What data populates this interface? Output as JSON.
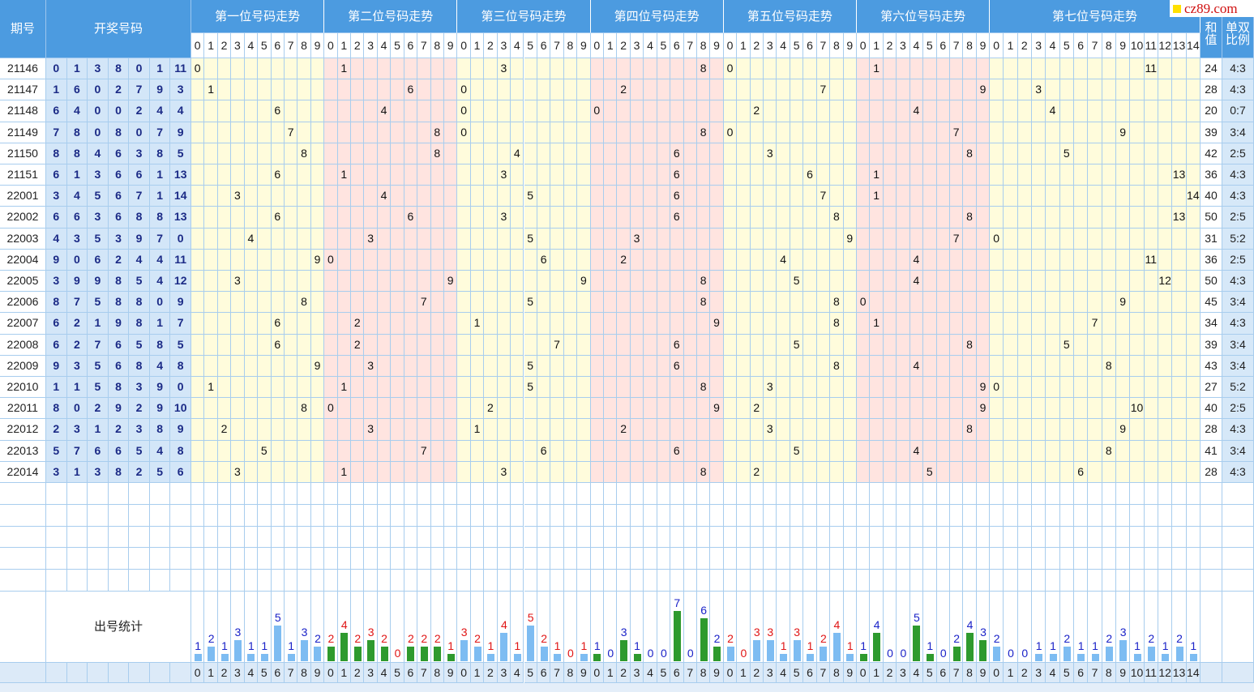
{
  "logo": "cz89.com",
  "header": {
    "period": "期号",
    "draw": "开奖号码",
    "sum": "和值",
    "ratio": "单双比例"
  },
  "stats_label": "出号统计",
  "sections": [
    {
      "title": "第一位号码走势",
      "columns": [
        0,
        1,
        2,
        3,
        4,
        5,
        6,
        7,
        8,
        9
      ],
      "counts": [
        1,
        2,
        1,
        3,
        1,
        1,
        5,
        1,
        3,
        2
      ],
      "bg": "#fffcdc",
      "label_color": "#1a22c8",
      "bar_color": "#7dbcf2"
    },
    {
      "title": "第二位号码走势",
      "columns": [
        0,
        1,
        2,
        3,
        4,
        5,
        6,
        7,
        8,
        9
      ],
      "counts": [
        2,
        4,
        2,
        3,
        2,
        0,
        2,
        2,
        2,
        1
      ],
      "bg": "#ffe4e0",
      "label_color": "#e01515",
      "bar_color": "#2e9a2e"
    },
    {
      "title": "第三位号码走势",
      "columns": [
        0,
        1,
        2,
        3,
        4,
        5,
        6,
        7,
        8,
        9
      ],
      "counts": [
        3,
        2,
        1,
        4,
        1,
        5,
        2,
        1,
        0,
        1
      ],
      "bg": "#fffcdc",
      "label_color": "#e01515",
      "bar_color": "#7dbcf2"
    },
    {
      "title": "第四位号码走势",
      "columns": [
        0,
        1,
        2,
        3,
        4,
        5,
        6,
        7,
        8,
        9
      ],
      "counts": [
        1,
        0,
        3,
        1,
        0,
        0,
        7,
        0,
        6,
        2
      ],
      "bg": "#ffe4e0",
      "label_color": "#1a22c8",
      "bar_color": "#2e9a2e"
    },
    {
      "title": "第五位号码走势",
      "columns": [
        0,
        1,
        2,
        3,
        4,
        5,
        6,
        7,
        8,
        9
      ],
      "counts": [
        2,
        0,
        3,
        3,
        1,
        3,
        1,
        2,
        4,
        1
      ],
      "bg": "#fffcdc",
      "label_color": "#e01515",
      "bar_color": "#7dbcf2"
    },
    {
      "title": "第六位号码走势",
      "columns": [
        0,
        1,
        2,
        3,
        4,
        5,
        6,
        7,
        8,
        9
      ],
      "counts": [
        1,
        4,
        0,
        0,
        5,
        1,
        0,
        2,
        4,
        3
      ],
      "bg": "#ffe4e0",
      "label_color": "#1a22c8",
      "bar_color": "#2e9a2e"
    },
    {
      "title": "第七位号码走势",
      "columns": [
        0,
        1,
        2,
        3,
        4,
        5,
        6,
        7,
        8,
        9,
        10,
        11,
        12,
        13,
        14
      ],
      "counts": [
        2,
        0,
        0,
        1,
        1,
        2,
        1,
        1,
        2,
        3,
        1,
        2,
        1,
        2,
        1
      ],
      "bg": "#fffcdc",
      "label_color": "#1a22c8",
      "bar_color": "#7dbcf2"
    }
  ],
  "rows": [
    {
      "period": "21146",
      "numbers": [
        0,
        1,
        3,
        8,
        0,
        1,
        11
      ],
      "sum": 24,
      "ratio": "4:3"
    },
    {
      "period": "21147",
      "numbers": [
        1,
        6,
        0,
        2,
        7,
        9,
        3
      ],
      "sum": 28,
      "ratio": "4:3"
    },
    {
      "period": "21148",
      "numbers": [
        6,
        4,
        0,
        0,
        2,
        4,
        4
      ],
      "sum": 20,
      "ratio": "0:7"
    },
    {
      "period": "21149",
      "numbers": [
        7,
        8,
        0,
        8,
        0,
        7,
        9
      ],
      "sum": 39,
      "ratio": "3:4"
    },
    {
      "period": "21150",
      "numbers": [
        8,
        8,
        4,
        6,
        3,
        8,
        5
      ],
      "sum": 42,
      "ratio": "2:5"
    },
    {
      "period": "21151",
      "numbers": [
        6,
        1,
        3,
        6,
        6,
        1,
        13
      ],
      "sum": 36,
      "ratio": "4:3"
    },
    {
      "period": "22001",
      "numbers": [
        3,
        4,
        5,
        6,
        7,
        1,
        14
      ],
      "sum": 40,
      "ratio": "4:3"
    },
    {
      "period": "22002",
      "numbers": [
        6,
        6,
        3,
        6,
        8,
        8,
        13
      ],
      "sum": 50,
      "ratio": "2:5"
    },
    {
      "period": "22003",
      "numbers": [
        4,
        3,
        5,
        3,
        9,
        7,
        0
      ],
      "sum": 31,
      "ratio": "5:2"
    },
    {
      "period": "22004",
      "numbers": [
        9,
        0,
        6,
        2,
        4,
        4,
        11
      ],
      "sum": 36,
      "ratio": "2:5"
    },
    {
      "period": "22005",
      "numbers": [
        3,
        9,
        9,
        8,
        5,
        4,
        12
      ],
      "sum": 50,
      "ratio": "4:3"
    },
    {
      "period": "22006",
      "numbers": [
        8,
        7,
        5,
        8,
        8,
        0,
        9
      ],
      "sum": 45,
      "ratio": "3:4"
    },
    {
      "period": "22007",
      "numbers": [
        6,
        2,
        1,
        9,
        8,
        1,
        7
      ],
      "sum": 34,
      "ratio": "4:3"
    },
    {
      "period": "22008",
      "numbers": [
        6,
        2,
        7,
        6,
        5,
        8,
        5
      ],
      "sum": 39,
      "ratio": "3:4"
    },
    {
      "period": "22009",
      "numbers": [
        9,
        3,
        5,
        6,
        8,
        4,
        8
      ],
      "sum": 43,
      "ratio": "3:4"
    },
    {
      "period": "22010",
      "numbers": [
        1,
        1,
        5,
        8,
        3,
        9,
        0
      ],
      "sum": 27,
      "ratio": "5:2"
    },
    {
      "period": "22011",
      "numbers": [
        8,
        0,
        2,
        9,
        2,
        9,
        10
      ],
      "sum": 40,
      "ratio": "2:5"
    },
    {
      "period": "22012",
      "numbers": [
        2,
        3,
        1,
        2,
        3,
        8,
        9
      ],
      "sum": 28,
      "ratio": "4:3"
    },
    {
      "period": "22013",
      "numbers": [
        5,
        7,
        6,
        6,
        5,
        4,
        8
      ],
      "sum": 41,
      "ratio": "3:4"
    },
    {
      "period": "22014",
      "numbers": [
        3,
        1,
        3,
        8,
        2,
        5,
        6
      ],
      "sum": 28,
      "ratio": "4:3"
    }
  ]
}
